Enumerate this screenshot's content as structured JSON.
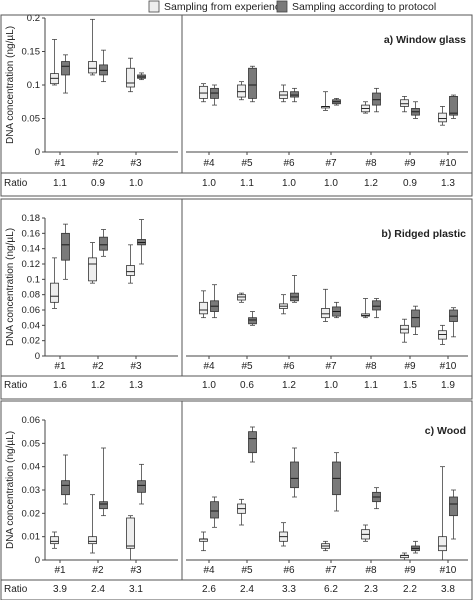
{
  "legend": {
    "items": [
      {
        "label": "Sampling from experience",
        "color": "#eeeeee"
      },
      {
        "label": "Sampling according to protocol",
        "color": "#7a7a7a"
      }
    ]
  },
  "y_axis_label": "DNA concentration (ng/µL)",
  "ratio_label": "Ratio",
  "chart_data": [
    {
      "type": "box",
      "title": "a) Window glass",
      "ylabel": "DNA concentration (ng/µL)",
      "ylim": [
        0,
        0.2
      ],
      "yticks": [
        "0",
        "0.05",
        "0.1",
        "0.15",
        "0.2"
      ],
      "ytick_values": [
        0,
        0.05,
        0.1,
        0.15,
        0.2
      ],
      "categories": [
        "#1",
        "#2",
        "#3",
        "#4",
        "#5",
        "#6",
        "#7",
        "#8",
        "#9",
        "#10"
      ],
      "ratios": [
        "1.1",
        "0.9",
        "1.0",
        "1.0",
        "1.1",
        "1.0",
        "1.0",
        "1.2",
        "0.9",
        "1.3"
      ],
      "series": [
        {
          "name": "Sampling from experience",
          "boxes": [
            {
              "min": 0.1,
              "q1": 0.102,
              "median": 0.11,
              "q3": 0.117,
              "max": 0.168
            },
            {
              "min": 0.115,
              "q1": 0.118,
              "median": 0.125,
              "q3": 0.135,
              "max": 0.198
            },
            {
              "min": 0.09,
              "q1": 0.097,
              "median": 0.103,
              "q3": 0.125,
              "max": 0.14
            },
            {
              "min": 0.075,
              "q1": 0.08,
              "median": 0.088,
              "q3": 0.098,
              "max": 0.102
            },
            {
              "min": 0.078,
              "q1": 0.082,
              "median": 0.09,
              "q3": 0.1,
              "max": 0.105
            },
            {
              "min": 0.075,
              "q1": 0.08,
              "median": 0.085,
              "q3": 0.09,
              "max": 0.1
            },
            {
              "min": 0.062,
              "q1": 0.068,
              "median": 0.068,
              "q3": 0.068,
              "max": 0.09
            },
            {
              "min": 0.058,
              "q1": 0.06,
              "median": 0.065,
              "q3": 0.07,
              "max": 0.075
            },
            {
              "min": 0.06,
              "q1": 0.068,
              "median": 0.072,
              "q3": 0.078,
              "max": 0.083
            },
            {
              "min": 0.04,
              "q1": 0.045,
              "median": 0.05,
              "q3": 0.058,
              "max": 0.068
            }
          ]
        },
        {
          "name": "Sampling according to protocol",
          "boxes": [
            {
              "min": 0.088,
              "q1": 0.115,
              "median": 0.128,
              "q3": 0.135,
              "max": 0.145
            },
            {
              "min": 0.105,
              "q1": 0.115,
              "median": 0.122,
              "q3": 0.13,
              "max": 0.152
            },
            {
              "min": 0.108,
              "q1": 0.11,
              "median": 0.112,
              "q3": 0.115,
              "max": 0.118
            },
            {
              "min": 0.07,
              "q1": 0.08,
              "median": 0.088,
              "q3": 0.095,
              "max": 0.1
            },
            {
              "min": 0.075,
              "q1": 0.08,
              "median": 0.1,
              "q3": 0.125,
              "max": 0.128
            },
            {
              "min": 0.075,
              "q1": 0.082,
              "median": 0.085,
              "q3": 0.09,
              "max": 0.095
            },
            {
              "min": 0.07,
              "q1": 0.072,
              "median": 0.075,
              "q3": 0.078,
              "max": 0.08
            },
            {
              "min": 0.06,
              "q1": 0.07,
              "median": 0.078,
              "q3": 0.088,
              "max": 0.095
            },
            {
              "min": 0.05,
              "q1": 0.055,
              "median": 0.06,
              "q3": 0.065,
              "max": 0.075
            },
            {
              "min": 0.05,
              "q1": 0.055,
              "median": 0.058,
              "q3": 0.083,
              "max": 0.085
            }
          ]
        }
      ]
    },
    {
      "type": "box",
      "title": "b) Ridged plastic",
      "ylabel": "DNA concentration (ng/µL)",
      "ylim": [
        0,
        0.18
      ],
      "yticks": [
        "0",
        "0.02",
        "0.04",
        "0.06",
        "0.08",
        "0.1",
        "0.12",
        "0.14",
        "0.16",
        "0.18"
      ],
      "ytick_values": [
        0,
        0.02,
        0.04,
        0.06,
        0.08,
        0.1,
        0.12,
        0.14,
        0.16,
        0.18
      ],
      "categories": [
        "#1",
        "#2",
        "#3",
        "#4",
        "#5",
        "#6",
        "#7",
        "#8",
        "#9",
        "#10"
      ],
      "ratios": [
        "1.6",
        "1.2",
        "1.3",
        "1.0",
        "0.6",
        "1.2",
        "1.0",
        "1.1",
        "1.5",
        "1.9"
      ],
      "series": [
        {
          "name": "Sampling from experience",
          "boxes": [
            {
              "min": 0.062,
              "q1": 0.07,
              "median": 0.078,
              "q3": 0.095,
              "max": 0.128
            },
            {
              "min": 0.095,
              "q1": 0.098,
              "median": 0.12,
              "q3": 0.128,
              "max": 0.148
            },
            {
              "min": 0.095,
              "q1": 0.105,
              "median": 0.11,
              "q3": 0.118,
              "max": 0.145
            },
            {
              "min": 0.05,
              "q1": 0.055,
              "median": 0.06,
              "q3": 0.07,
              "max": 0.085
            },
            {
              "min": 0.07,
              "q1": 0.073,
              "median": 0.077,
              "q3": 0.08,
              "max": 0.082
            },
            {
              "min": 0.055,
              "q1": 0.062,
              "median": 0.065,
              "q3": 0.068,
              "max": 0.08
            },
            {
              "min": 0.045,
              "q1": 0.05,
              "median": 0.055,
              "q3": 0.062,
              "max": 0.087
            },
            {
              "min": 0.05,
              "q1": 0.052,
              "median": 0.053,
              "q3": 0.055,
              "max": 0.075
            },
            {
              "min": 0.018,
              "q1": 0.03,
              "median": 0.035,
              "q3": 0.04,
              "max": 0.048
            },
            {
              "min": 0.015,
              "q1": 0.022,
              "median": 0.028,
              "q3": 0.033,
              "max": 0.04
            }
          ]
        },
        {
          "name": "Sampling according to protocol",
          "boxes": [
            {
              "min": 0.1,
              "q1": 0.125,
              "median": 0.145,
              "q3": 0.16,
              "max": 0.172
            },
            {
              "min": 0.13,
              "q1": 0.138,
              "median": 0.145,
              "q3": 0.155,
              "max": 0.165
            },
            {
              "min": 0.12,
              "q1": 0.145,
              "median": 0.148,
              "q3": 0.152,
              "max": 0.178
            },
            {
              "min": 0.05,
              "q1": 0.058,
              "median": 0.065,
              "q3": 0.072,
              "max": 0.093
            },
            {
              "min": 0.04,
              "q1": 0.042,
              "median": 0.047,
              "q3": 0.05,
              "max": 0.058
            },
            {
              "min": 0.07,
              "q1": 0.072,
              "median": 0.077,
              "q3": 0.082,
              "max": 0.105
            },
            {
              "min": 0.05,
              "q1": 0.052,
              "median": 0.058,
              "q3": 0.064,
              "max": 0.07
            },
            {
              "min": 0.05,
              "q1": 0.06,
              "median": 0.065,
              "q3": 0.072,
              "max": 0.075
            },
            {
              "min": 0.028,
              "q1": 0.038,
              "median": 0.05,
              "q3": 0.06,
              "max": 0.065
            },
            {
              "min": 0.025,
              "q1": 0.045,
              "median": 0.052,
              "q3": 0.06,
              "max": 0.063
            }
          ]
        }
      ]
    },
    {
      "type": "box",
      "title": "c) Wood",
      "ylabel": "DNA concentration (ng/µL)",
      "ylim": [
        0,
        0.06
      ],
      "yticks": [
        "0",
        "0.01",
        "0.02",
        "0.03",
        "0.04",
        "0.05",
        "0.06"
      ],
      "ytick_values": [
        0,
        0.01,
        0.02,
        0.03,
        0.04,
        0.05,
        0.06
      ],
      "categories": [
        "#1",
        "#2",
        "#3",
        "#4",
        "#5",
        "#6",
        "#7",
        "#8",
        "#9",
        "#10"
      ],
      "ratios": [
        "3.9",
        "2.4",
        "3.1",
        "2.6",
        "2.4",
        "3.3",
        "6.2",
        "2.3",
        "2.2",
        "3.8"
      ],
      "series": [
        {
          "name": "Sampling from experience",
          "boxes": [
            {
              "min": 0.005,
              "q1": 0.007,
              "median": 0.008,
              "q3": 0.01,
              "max": 0.012
            },
            {
              "min": 0.003,
              "q1": 0.007,
              "median": 0.008,
              "q3": 0.01,
              "max": 0.028
            },
            {
              "min": 0.0,
              "q1": 0.005,
              "median": 0.006,
              "q3": 0.018,
              "max": 0.019
            },
            {
              "min": 0.004,
              "q1": 0.008,
              "median": 0.009,
              "q3": 0.009,
              "max": 0.012
            },
            {
              "min": 0.015,
              "q1": 0.02,
              "median": 0.022,
              "q3": 0.024,
              "max": 0.026
            },
            {
              "min": 0.006,
              "q1": 0.008,
              "median": 0.01,
              "q3": 0.012,
              "max": 0.016
            },
            {
              "min": 0.004,
              "q1": 0.005,
              "median": 0.006,
              "q3": 0.007,
              "max": 0.008
            },
            {
              "min": 0.008,
              "q1": 0.009,
              "median": 0.011,
              "q3": 0.013,
              "max": 0.015
            },
            {
              "min": 0.0,
              "q1": 0.001,
              "median": 0.002,
              "q3": 0.002,
              "max": 0.003
            },
            {
              "min": 0.0,
              "q1": 0.004,
              "median": 0.006,
              "q3": 0.01,
              "max": 0.04
            }
          ]
        },
        {
          "name": "Sampling according to protocol",
          "boxes": [
            {
              "min": 0.024,
              "q1": 0.028,
              "median": 0.032,
              "q3": 0.034,
              "max": 0.045
            },
            {
              "min": 0.019,
              "q1": 0.022,
              "median": 0.024,
              "q3": 0.025,
              "max": 0.048
            },
            {
              "min": 0.024,
              "q1": 0.029,
              "median": 0.032,
              "q3": 0.034,
              "max": 0.041
            },
            {
              "min": 0.014,
              "q1": 0.018,
              "median": 0.021,
              "q3": 0.025,
              "max": 0.027
            },
            {
              "min": 0.042,
              "q1": 0.046,
              "median": 0.052,
              "q3": 0.055,
              "max": 0.057
            },
            {
              "min": 0.027,
              "q1": 0.031,
              "median": 0.035,
              "q3": 0.042,
              "max": 0.048
            },
            {
              "min": 0.021,
              "q1": 0.028,
              "median": 0.035,
              "q3": 0.042,
              "max": 0.046
            },
            {
              "min": 0.022,
              "q1": 0.025,
              "median": 0.027,
              "q3": 0.029,
              "max": 0.031
            },
            {
              "min": 0.003,
              "q1": 0.004,
              "median": 0.005,
              "q3": 0.006,
              "max": 0.008
            },
            {
              "min": 0.009,
              "q1": 0.019,
              "median": 0.024,
              "q3": 0.027,
              "max": 0.03
            }
          ]
        }
      ]
    }
  ]
}
